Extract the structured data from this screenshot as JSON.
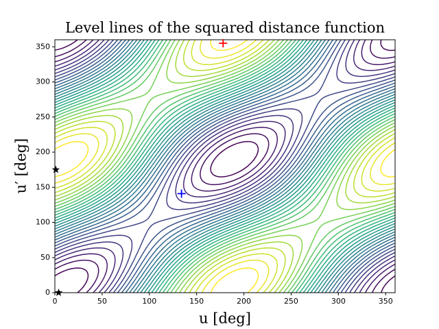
{
  "chart_data": {
    "type": "contour",
    "title": "Level lines of the squared distance function",
    "xlabel": "u [deg]",
    "ylabel": "u′ [deg]",
    "xlim": [
      0,
      360
    ],
    "ylim": [
      0,
      360
    ],
    "xticks": [
      0,
      50,
      100,
      150,
      200,
      250,
      300,
      350
    ],
    "yticks": [
      0,
      50,
      100,
      150,
      200,
      250,
      300,
      350
    ],
    "points": [
      {
        "x": 178,
        "y": 355,
        "marker": "plus",
        "color": "#ff0000"
      },
      {
        "x": 134,
        "y": 141,
        "marker": "plus",
        "color": "#0000ff"
      },
      {
        "x": 1,
        "y": 175,
        "marker": "star",
        "color": "#000000"
      },
      {
        "x": 4,
        "y": 0,
        "marker": "star",
        "color": "#000000"
      }
    ]
  }
}
